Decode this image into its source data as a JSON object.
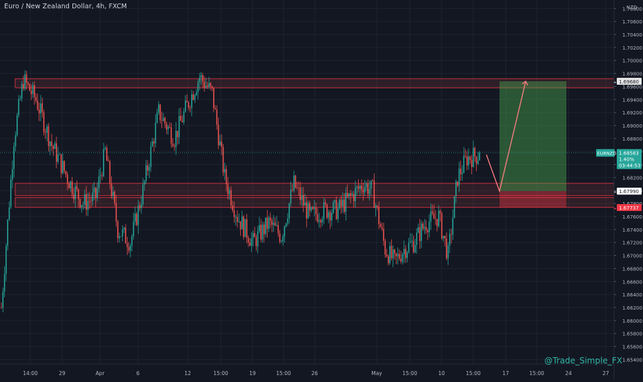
{
  "header": {
    "symbol_title": "Euro / New Zealand Dollar, 4h, FXCM"
  },
  "watermark": "@Trade_Simple_FX",
  "colors": {
    "background": "#131722",
    "grid": "#1f2330",
    "text": "#b2b5be",
    "up": "#26a69a",
    "down": "#ef5350",
    "zone_fill": "rgba(239,83,80,0.12)",
    "zone_stroke": "#f23645",
    "target_fill": "rgba(76,175,80,0.42)",
    "stop_fill": "rgba(242,54,69,0.38)",
    "arrow": "#f77c80",
    "price_badge": "#26a69a",
    "stop_badge": "#f23645"
  },
  "chart_data": {
    "type": "candlestick",
    "title": "Euro / New Zealand Dollar, 4h, FXCM",
    "currency_label": "NZD",
    "y_ticks": [
      1.708,
      1.706,
      1.704,
      1.702,
      1.7,
      1.698,
      1.696,
      1.694,
      1.692,
      1.69,
      1.688,
      1.686,
      1.684,
      1.682,
      1.68,
      1.678,
      1.676,
      1.674,
      1.672,
      1.67,
      1.668,
      1.666,
      1.664,
      1.662,
      1.66,
      1.658,
      1.656,
      1.654
    ],
    "y_tick_labels": [
      "1.70800",
      "1.70600",
      "1.70400",
      "1.70200",
      "1.70000",
      "1.69800",
      "1.69600",
      "1.69400",
      "1.69200",
      "1.69000",
      "1.68800",
      "1.68600",
      "1.68400",
      "1.68200",
      "1.68000",
      "1.67800",
      "1.67600",
      "1.67400",
      "1.67200",
      "1.67000",
      "1.66800",
      "1.66600",
      "1.66400",
      "1.66200",
      "1.66000",
      "1.65800",
      "1.65600",
      "1.65400"
    ],
    "ylim": [
      1.6533,
      1.7093
    ],
    "x_tick_labels": [
      "14:00",
      "29",
      "Apr",
      "6",
      "12",
      "15:00",
      "19",
      "15:00",
      "26",
      "May",
      "15:00",
      "10",
      "15:00",
      "17",
      "15:00",
      "24",
      "27"
    ],
    "candle_count": 260,
    "price_path": [
      [
        0,
        1.662
      ],
      [
        8,
        1.688
      ],
      [
        14,
        1.697
      ],
      [
        22,
        1.694
      ],
      [
        32,
        1.687
      ],
      [
        44,
        1.681
      ],
      [
        52,
        1.678
      ],
      [
        60,
        1.679
      ],
      [
        66,
        1.686
      ],
      [
        74,
        1.674
      ],
      [
        82,
        1.672
      ],
      [
        90,
        1.68
      ],
      [
        100,
        1.692
      ],
      [
        110,
        1.688
      ],
      [
        118,
        1.693
      ],
      [
        126,
        1.6975
      ],
      [
        134,
        1.695
      ],
      [
        142,
        1.682
      ],
      [
        150,
        1.676
      ],
      [
        160,
        1.672
      ],
      [
        170,
        1.675
      ],
      [
        178,
        1.673
      ],
      [
        186,
        1.681
      ],
      [
        196,
        1.676
      ],
      [
        206,
        1.677
      ],
      [
        214,
        1.677
      ],
      [
        222,
        1.679
      ],
      [
        230,
        1.681
      ],
      [
        236,
        1.68
      ],
      [
        244,
        1.671
      ],
      [
        250,
        1.669
      ],
      [
        256,
        1.671
      ],
      [
        262,
        1.672
      ],
      [
        270,
        1.675
      ],
      [
        278,
        1.676
      ],
      [
        284,
        1.67
      ],
      [
        290,
        1.682
      ],
      [
        296,
        1.685
      ],
      [
        304,
        1.6855
      ]
    ],
    "levels": [
      {
        "name": "resistance-zone",
        "from": 1.6958,
        "to": 1.6972
      },
      {
        "name": "support-zone-upper",
        "from": 1.6792,
        "to": 1.6811
      },
      {
        "name": "support-zone-lower",
        "from": 1.6774,
        "to": 1.6789
      }
    ],
    "position": {
      "type": "long",
      "entry": 1.6799,
      "target": 1.6968,
      "stop": 1.67737
    },
    "projection": [
      {
        "price": 1.6855
      },
      {
        "price": 1.6799
      },
      {
        "price": 1.6968
      }
    ],
    "last_price": {
      "symbol": "EURNZD",
      "price": "1.68583",
      "change": "1.40%",
      "countdown": "03:44:53"
    },
    "marker_labels": {
      "target": "1.69680",
      "entry": "1.67990",
      "stop": "1.67737"
    }
  }
}
